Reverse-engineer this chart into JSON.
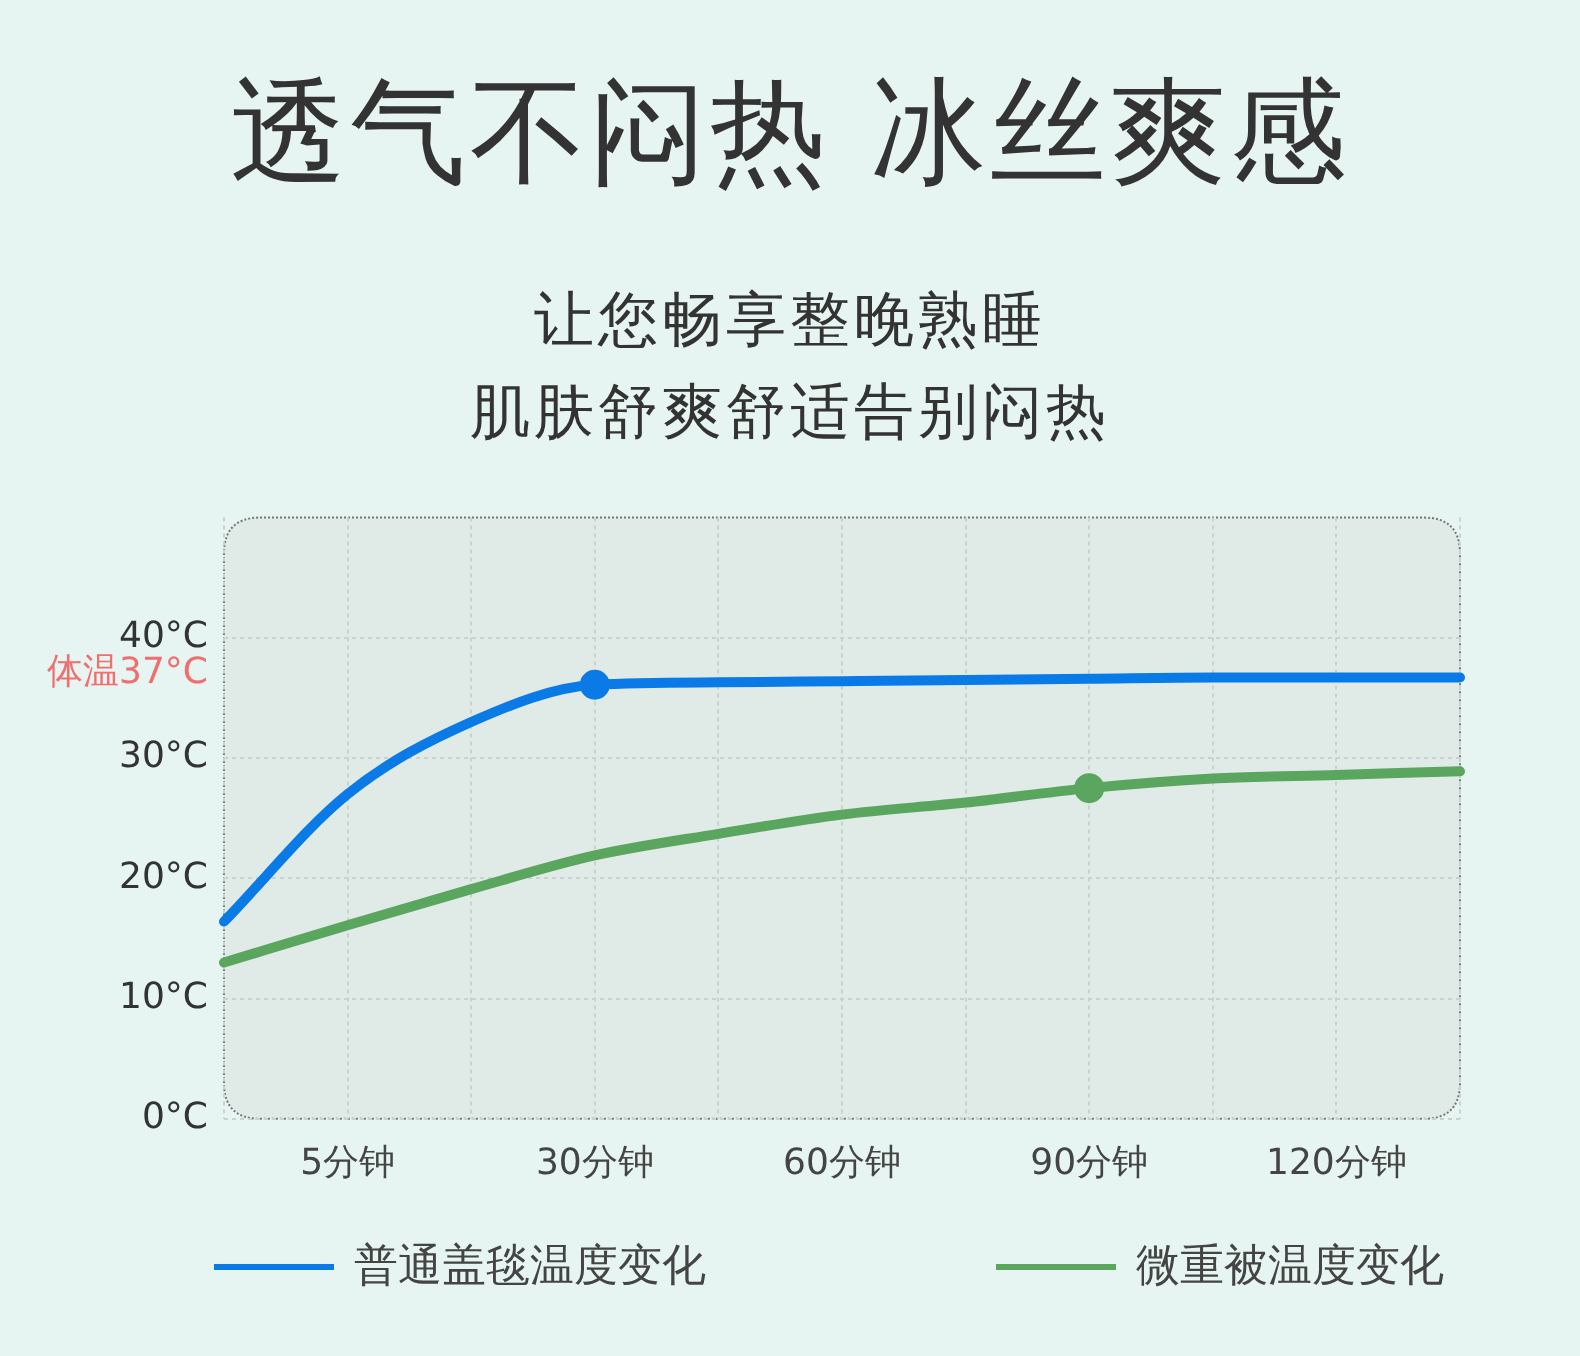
{
  "chart_data": {
    "type": "line",
    "title": "透气不闷热 冰丝爽感",
    "subtitle": "让您畅享整晚熟睡",
    "annotations": [
      "肌肤舒爽舒适告别闷热"
    ],
    "categories": [
      null,
      "5分钟",
      null,
      "30分钟",
      null,
      "60分钟",
      null,
      "90分钟",
      null,
      "120分钟",
      null
    ],
    "series": [
      {
        "name": "普通盖毯温度变化",
        "color": "#0a7be6",
        "values": [
          16.4,
          27,
          33,
          36.1,
          36.3,
          36.4,
          36.5,
          36.6,
          36.7,
          36.7,
          36.7
        ]
      },
      {
        "name": "微重被温度变化",
        "color": "#5aa65e",
        "values": [
          13,
          16.1,
          19.1,
          21.9,
          23.7,
          25.3,
          26.3,
          27.5,
          28.3,
          28.6,
          28.9
        ]
      },
      {
        "type": "scatter",
        "color": "#0a7be6",
        "x": [
          "30分钟"
        ],
        "values": [
          36.1
        ]
      },
      {
        "type": "scatter",
        "color": "#5aa65e",
        "x": [
          "90分钟"
        ],
        "values": [
          27.5
        ]
      }
    ],
    "ylim": [
      0,
      50
    ],
    "yticks": [
      {
        "value": 0,
        "label": "0°C"
      },
      {
        "value": 10,
        "label": "10°C"
      },
      {
        "value": 20,
        "label": "20°C"
      },
      {
        "value": 30,
        "label": "30°C"
      },
      {
        "value": 37,
        "label": "体温37°C"
      },
      {
        "value": 40,
        "label": "40°C"
      }
    ],
    "grid": true,
    "legend": "bottom"
  }
}
